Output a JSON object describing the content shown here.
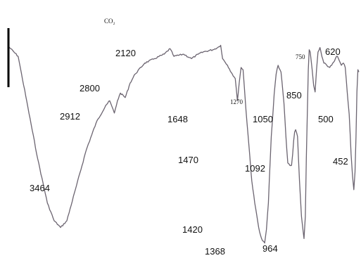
{
  "chart_data": {
    "type": "line",
    "title": "",
    "xlabel": "",
    "ylabel": "",
    "colors": {
      "trace": "#6b6470",
      "scalebar": "#000000"
    },
    "series": [
      {
        "points": [
          [
            4000,
            0.905
          ],
          [
            3900,
            0.86
          ],
          [
            3800,
            0.63
          ],
          [
            3700,
            0.4
          ],
          [
            3600,
            0.2
          ],
          [
            3530,
            0.12
          ],
          [
            3464,
            0.09
          ],
          [
            3400,
            0.12
          ],
          [
            3300,
            0.28
          ],
          [
            3200,
            0.44
          ],
          [
            3100,
            0.56
          ],
          [
            3000,
            0.64
          ],
          [
            2960,
            0.66
          ],
          [
            2912,
            0.605
          ],
          [
            2880,
            0.66
          ],
          [
            2850,
            0.695
          ],
          [
            2800,
            0.675
          ],
          [
            2750,
            0.74
          ],
          [
            2700,
            0.78
          ],
          [
            2600,
            0.83
          ],
          [
            2500,
            0.85
          ],
          [
            2400,
            0.87
          ],
          [
            2340,
            0.895
          ],
          [
            2300,
            0.86
          ],
          [
            2200,
            0.87
          ],
          [
            2120,
            0.85
          ],
          [
            2050,
            0.87
          ],
          [
            2000,
            0.88
          ],
          [
            1900,
            0.89
          ],
          [
            1850,
            0.9
          ],
          [
            1820,
            0.91
          ],
          [
            1800,
            0.85
          ],
          [
            1750,
            0.82
          ],
          [
            1700,
            0.78
          ],
          [
            1670,
            0.76
          ],
          [
            1648,
            0.66
          ],
          [
            1630,
            0.74
          ],
          [
            1610,
            0.81
          ],
          [
            1590,
            0.8
          ],
          [
            1560,
            0.62
          ],
          [
            1530,
            0.46
          ],
          [
            1500,
            0.3
          ],
          [
            1470,
            0.2
          ],
          [
            1440,
            0.12
          ],
          [
            1420,
            0.07
          ],
          [
            1400,
            0.04
          ],
          [
            1390,
            0.03
          ],
          [
            1368,
            0.02
          ],
          [
            1350,
            0.08
          ],
          [
            1330,
            0.2
          ],
          [
            1310,
            0.4
          ],
          [
            1300,
            0.5
          ],
          [
            1290,
            0.56
          ],
          [
            1270,
            0.69
          ],
          [
            1250,
            0.78
          ],
          [
            1230,
            0.82
          ],
          [
            1200,
            0.79
          ],
          [
            1170,
            0.65
          ],
          [
            1150,
            0.5
          ],
          [
            1130,
            0.38
          ],
          [
            1110,
            0.37
          ],
          [
            1092,
            0.37
          ],
          [
            1080,
            0.42
          ],
          [
            1070,
            0.48
          ],
          [
            1060,
            0.52
          ],
          [
            1050,
            0.53
          ],
          [
            1030,
            0.5
          ],
          [
            1010,
            0.3
          ],
          [
            990,
            0.14
          ],
          [
            975,
            0.08
          ],
          [
            964,
            0.04
          ],
          [
            950,
            0.14
          ],
          [
            940,
            0.4
          ],
          [
            930,
            0.6
          ],
          [
            920,
            0.8
          ],
          [
            910,
            0.89
          ],
          [
            900,
            0.88
          ],
          [
            880,
            0.8
          ],
          [
            865,
            0.73
          ],
          [
            850,
            0.7
          ],
          [
            835,
            0.8
          ],
          [
            820,
            0.88
          ],
          [
            800,
            0.9
          ],
          [
            780,
            0.86
          ],
          [
            760,
            0.83
          ],
          [
            750,
            0.83
          ],
          [
            730,
            0.82
          ],
          [
            700,
            0.81
          ],
          [
            680,
            0.82
          ],
          [
            650,
            0.84
          ],
          [
            630,
            0.86
          ],
          [
            620,
            0.86
          ],
          [
            600,
            0.84
          ],
          [
            580,
            0.82
          ],
          [
            560,
            0.83
          ],
          [
            540,
            0.81
          ],
          [
            520,
            0.7
          ],
          [
            500,
            0.6
          ],
          [
            480,
            0.42
          ],
          [
            465,
            0.32
          ],
          [
            452,
            0.26
          ],
          [
            440,
            0.34
          ],
          [
            430,
            0.5
          ],
          [
            420,
            0.7
          ],
          [
            410,
            0.8
          ],
          [
            400,
            0.79
          ]
        ]
      }
    ],
    "annotations": [
      {
        "text": "3464",
        "x": 3464
      },
      {
        "text": "2912",
        "x": 2912
      },
      {
        "text": "2800",
        "x": 2800
      },
      {
        "text": "2120",
        "x": 2120
      },
      {
        "text": "CO₂",
        "x": 2340
      },
      {
        "text": "1648",
        "x": 1648
      },
      {
        "text": "1470",
        "x": 1470
      },
      {
        "text": "1420",
        "x": 1420
      },
      {
        "text": "1368",
        "x": 1368
      },
      {
        "text": "1270",
        "x": 1270
      },
      {
        "text": "1092",
        "x": 1092
      },
      {
        "text": "1050",
        "x": 1050
      },
      {
        "text": "964",
        "x": 964
      },
      {
        "text": "850",
        "x": 850
      },
      {
        "text": "750",
        "x": 750
      },
      {
        "text": "620",
        "x": 620
      },
      {
        "text": "500",
        "x": 500
      },
      {
        "text": "452",
        "x": 452
      }
    ],
    "grid": false,
    "legend": "none"
  }
}
